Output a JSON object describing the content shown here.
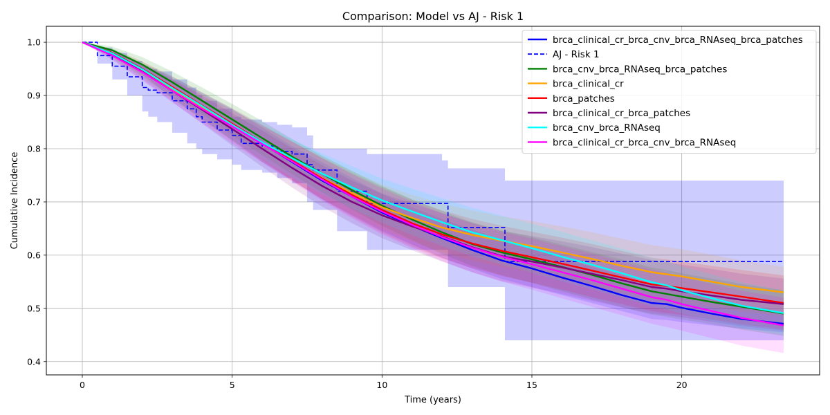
{
  "chart_data": {
    "type": "line",
    "title": "Comparison: Model vs AJ - Risk 1",
    "xlabel": "Time (years)",
    "ylabel": "Cumulative Incidence",
    "xlim": [
      -1.2,
      24.6
    ],
    "ylim": [
      0.375,
      1.03
    ],
    "xticks": [
      0,
      5,
      10,
      15,
      20
    ],
    "xtick_labels": [
      "0",
      "5",
      "10",
      "15",
      "20"
    ],
    "yticks": [
      0.4,
      0.5,
      0.6,
      0.7,
      0.8,
      0.9,
      1.0
    ],
    "ytick_labels": [
      "0.4",
      "0.5",
      "0.6",
      "0.7",
      "0.8",
      "0.9",
      "1.0"
    ],
    "grid": true,
    "legend_position": "top-right",
    "series": [
      {
        "name": "brca_clinical_cr_brca_cnv_brca_RNAseq_brca_patches",
        "color": "#0000ff",
        "style": "solid",
        "x": [
          0,
          1,
          2,
          3,
          4,
          5,
          6,
          7,
          8,
          9,
          10,
          11,
          12,
          13,
          14,
          15,
          16,
          17,
          18,
          19,
          19.5,
          20,
          21,
          22,
          23.4
        ],
        "y": [
          1.0,
          0.98,
          0.95,
          0.915,
          0.88,
          0.845,
          0.81,
          0.775,
          0.74,
          0.71,
          0.68,
          0.655,
          0.632,
          0.61,
          0.59,
          0.575,
          0.558,
          0.542,
          0.525,
          0.51,
          0.508,
          0.501,
          0.49,
          0.48,
          0.471
        ],
        "band_lo": [
          1.0,
          0.975,
          0.94,
          0.895,
          0.855,
          0.815,
          0.775,
          0.74,
          0.705,
          0.675,
          0.645,
          0.62,
          0.595,
          0.575,
          0.555,
          0.54,
          0.525,
          0.51,
          0.495,
          0.48,
          0.478,
          0.474,
          0.468,
          0.462,
          0.455
        ],
        "band_hi": [
          1.0,
          0.985,
          0.96,
          0.935,
          0.905,
          0.875,
          0.84,
          0.805,
          0.775,
          0.745,
          0.715,
          0.69,
          0.668,
          0.648,
          0.628,
          0.612,
          0.595,
          0.578,
          0.562,
          0.545,
          0.54,
          0.532,
          0.52,
          0.505,
          0.49
        ]
      },
      {
        "name": "AJ - Risk 1",
        "color": "#0000ff",
        "style": "dashed",
        "step": true,
        "x": [
          0,
          0.5,
          1,
          1.5,
          2,
          2.2,
          2.5,
          3,
          3.5,
          3.8,
          4,
          4.5,
          5,
          5.3,
          6,
          6.5,
          7,
          7.5,
          7.7,
          8.5,
          9.5,
          12,
          12.2,
          13.9,
          14.1,
          23.4
        ],
        "y": [
          1.0,
          0.975,
          0.955,
          0.935,
          0.915,
          0.91,
          0.905,
          0.89,
          0.875,
          0.86,
          0.85,
          0.835,
          0.825,
          0.81,
          0.805,
          0.795,
          0.79,
          0.77,
          0.76,
          0.72,
          0.697,
          0.697,
          0.652,
          0.652,
          0.588,
          0.588
        ],
        "band_lo": [
          1.0,
          0.96,
          0.93,
          0.9,
          0.87,
          0.86,
          0.85,
          0.83,
          0.81,
          0.8,
          0.79,
          0.78,
          0.77,
          0.76,
          0.755,
          0.745,
          0.735,
          0.7,
          0.685,
          0.645,
          0.61,
          0.61,
          0.54,
          0.54,
          0.44,
          0.44
        ],
        "band_hi": [
          1.0,
          0.99,
          0.98,
          0.965,
          0.955,
          0.95,
          0.945,
          0.93,
          0.915,
          0.9,
          0.89,
          0.875,
          0.86,
          0.855,
          0.85,
          0.845,
          0.84,
          0.825,
          0.8,
          0.8,
          0.79,
          0.778,
          0.763,
          0.763,
          0.74,
          0.74
        ]
      },
      {
        "name": "brca_cnv_brca_RNAseq_brca_patches",
        "color": "#008000",
        "style": "solid",
        "x": [
          0,
          1,
          2,
          3,
          4,
          5,
          6,
          7,
          8,
          9,
          10,
          11,
          12,
          13,
          14,
          15,
          16,
          17,
          18,
          19,
          19.5,
          20,
          21,
          22,
          23.4
        ],
        "y": [
          1.0,
          0.985,
          0.958,
          0.925,
          0.89,
          0.855,
          0.82,
          0.785,
          0.753,
          0.722,
          0.693,
          0.667,
          0.643,
          0.621,
          0.605,
          0.592,
          0.578,
          0.563,
          0.547,
          0.532,
          0.527,
          0.522,
          0.512,
          0.503,
          0.49
        ],
        "band_lo": [
          1.0,
          0.978,
          0.945,
          0.905,
          0.865,
          0.825,
          0.788,
          0.752,
          0.718,
          0.686,
          0.655,
          0.628,
          0.602,
          0.58,
          0.562,
          0.548,
          0.532,
          0.517,
          0.502,
          0.488,
          0.484,
          0.479,
          0.47,
          0.46,
          0.448
        ],
        "band_hi": [
          1.0,
          0.992,
          0.972,
          0.945,
          0.915,
          0.884,
          0.852,
          0.818,
          0.787,
          0.758,
          0.73,
          0.705,
          0.683,
          0.662,
          0.647,
          0.634,
          0.62,
          0.606,
          0.592,
          0.577,
          0.572,
          0.566,
          0.556,
          0.546,
          0.534
        ]
      },
      {
        "name": "brca_clinical_cr",
        "color": "#ffa500",
        "style": "solid",
        "x": [
          0,
          1,
          2,
          3,
          4,
          5,
          6,
          7,
          8,
          9,
          10,
          11,
          12,
          13,
          14,
          15,
          16,
          17,
          18,
          19,
          19.5,
          20,
          21,
          22,
          23.4
        ],
        "y": [
          1.0,
          0.978,
          0.948,
          0.912,
          0.878,
          0.843,
          0.81,
          0.777,
          0.745,
          0.717,
          0.69,
          0.67,
          0.652,
          0.638,
          0.627,
          0.617,
          0.605,
          0.593,
          0.58,
          0.568,
          0.564,
          0.56,
          0.55,
          0.54,
          0.53
        ],
        "band_lo": [
          1.0,
          0.97,
          0.933,
          0.892,
          0.852,
          0.814,
          0.776,
          0.74,
          0.706,
          0.676,
          0.648,
          0.626,
          0.606,
          0.59,
          0.578,
          0.567,
          0.555,
          0.542,
          0.529,
          0.517,
          0.513,
          0.51,
          0.502,
          0.494,
          0.485
        ],
        "band_hi": [
          1.0,
          0.986,
          0.963,
          0.932,
          0.902,
          0.872,
          0.843,
          0.813,
          0.784,
          0.758,
          0.733,
          0.713,
          0.697,
          0.684,
          0.673,
          0.664,
          0.654,
          0.643,
          0.631,
          0.619,
          0.615,
          0.611,
          0.601,
          0.59,
          0.578
        ]
      },
      {
        "name": "brca_patches",
        "color": "#ff0000",
        "style": "solid",
        "x": [
          0,
          1,
          2,
          3,
          4,
          5,
          6,
          7,
          8,
          9,
          10,
          11,
          12,
          13,
          14,
          15,
          16,
          17,
          18,
          19,
          19.5,
          20,
          21,
          22,
          23.4
        ],
        "y": [
          1.0,
          0.98,
          0.95,
          0.916,
          0.881,
          0.847,
          0.812,
          0.778,
          0.744,
          0.713,
          0.685,
          0.66,
          0.639,
          0.622,
          0.608,
          0.596,
          0.584,
          0.571,
          0.558,
          0.545,
          0.542,
          0.538,
          0.53,
          0.522,
          0.51
        ],
        "band_lo": [
          1.0,
          0.972,
          0.936,
          0.896,
          0.856,
          0.817,
          0.778,
          0.741,
          0.705,
          0.672,
          0.642,
          0.616,
          0.594,
          0.576,
          0.561,
          0.548,
          0.535,
          0.521,
          0.508,
          0.495,
          0.491,
          0.488,
          0.479,
          0.47,
          0.46
        ],
        "band_hi": [
          1.0,
          0.988,
          0.964,
          0.936,
          0.906,
          0.876,
          0.845,
          0.814,
          0.783,
          0.754,
          0.728,
          0.704,
          0.684,
          0.668,
          0.655,
          0.644,
          0.633,
          0.621,
          0.608,
          0.595,
          0.592,
          0.588,
          0.58,
          0.572,
          0.562
        ]
      },
      {
        "name": "brca_clinical_cr_brca_patches",
        "color": "#800080",
        "style": "solid",
        "x": [
          0,
          1,
          2,
          3,
          4,
          5,
          6,
          7,
          8,
          9,
          10,
          11,
          12,
          13,
          14,
          15,
          16,
          17,
          18,
          19,
          19.5,
          20,
          21,
          22,
          23.4
        ],
        "y": [
          1.0,
          0.977,
          0.945,
          0.909,
          0.873,
          0.837,
          0.8,
          0.764,
          0.73,
          0.7,
          0.675,
          0.654,
          0.635,
          0.615,
          0.598,
          0.588,
          0.577,
          0.565,
          0.553,
          0.54,
          0.537,
          0.532,
          0.524,
          0.516,
          0.508
        ],
        "band_lo": [
          1.0,
          0.968,
          0.93,
          0.888,
          0.847,
          0.806,
          0.766,
          0.727,
          0.691,
          0.66,
          0.632,
          0.609,
          0.588,
          0.568,
          0.551,
          0.539,
          0.527,
          0.514,
          0.502,
          0.49,
          0.487,
          0.483,
          0.475,
          0.467,
          0.458
        ],
        "band_hi": [
          1.0,
          0.985,
          0.96,
          0.93,
          0.899,
          0.867,
          0.834,
          0.801,
          0.769,
          0.74,
          0.716,
          0.697,
          0.679,
          0.661,
          0.645,
          0.636,
          0.626,
          0.615,
          0.603,
          0.591,
          0.587,
          0.582,
          0.574,
          0.565,
          0.556
        ]
      },
      {
        "name": "brca_cnv_brca_RNAseq",
        "color": "#00ffff",
        "style": "solid",
        "x": [
          0,
          1,
          2,
          3,
          4,
          5,
          6,
          7,
          8,
          9,
          10,
          11,
          12,
          13,
          14,
          15,
          16,
          17,
          18,
          19,
          19.5,
          20,
          21,
          22,
          23.4
        ],
        "y": [
          1.0,
          0.979,
          0.949,
          0.914,
          0.88,
          0.845,
          0.812,
          0.782,
          0.753,
          0.727,
          0.703,
          0.682,
          0.662,
          0.643,
          0.628,
          0.613,
          0.597,
          0.582,
          0.566,
          0.549,
          0.543,
          0.534,
          0.519,
          0.505,
          0.491
        ],
        "band_lo": [
          1.0,
          0.97,
          0.934,
          0.893,
          0.855,
          0.816,
          0.78,
          0.746,
          0.715,
          0.687,
          0.661,
          0.638,
          0.617,
          0.598,
          0.582,
          0.567,
          0.551,
          0.536,
          0.52,
          0.504,
          0.498,
          0.49,
          0.476,
          0.463,
          0.45
        ],
        "band_hi": [
          1.0,
          0.988,
          0.963,
          0.934,
          0.905,
          0.874,
          0.845,
          0.818,
          0.791,
          0.767,
          0.744,
          0.725,
          0.707,
          0.689,
          0.674,
          0.659,
          0.644,
          0.628,
          0.612,
          0.595,
          0.589,
          0.579,
          0.564,
          0.549,
          0.534
        ]
      },
      {
        "name": "brca_clinical_cr_brca_cnv_brca_RNAseq",
        "color": "#ff00ff",
        "style": "solid",
        "x": [
          0,
          1,
          2,
          3,
          4,
          5,
          6,
          7,
          8,
          9,
          10,
          11,
          12,
          13,
          14,
          15,
          16,
          17,
          18,
          19,
          19.5,
          20,
          21,
          22,
          23.4
        ],
        "y": [
          1.0,
          0.975,
          0.944,
          0.909,
          0.875,
          0.842,
          0.809,
          0.776,
          0.742,
          0.71,
          0.682,
          0.657,
          0.634,
          0.614,
          0.597,
          0.583,
          0.568,
          0.553,
          0.537,
          0.521,
          0.516,
          0.508,
          0.495,
          0.482,
          0.468
        ],
        "band_lo": [
          1.0,
          0.966,
          0.928,
          0.887,
          0.848,
          0.81,
          0.774,
          0.738,
          0.702,
          0.669,
          0.639,
          0.613,
          0.589,
          0.568,
          0.55,
          0.535,
          0.519,
          0.503,
          0.487,
          0.471,
          0.465,
          0.458,
          0.444,
          0.43,
          0.416
        ],
        "band_hi": [
          1.0,
          0.984,
          0.96,
          0.931,
          0.902,
          0.873,
          0.843,
          0.813,
          0.782,
          0.752,
          0.725,
          0.701,
          0.679,
          0.66,
          0.644,
          0.631,
          0.617,
          0.603,
          0.588,
          0.573,
          0.567,
          0.559,
          0.546,
          0.533,
          0.52
        ]
      }
    ]
  }
}
